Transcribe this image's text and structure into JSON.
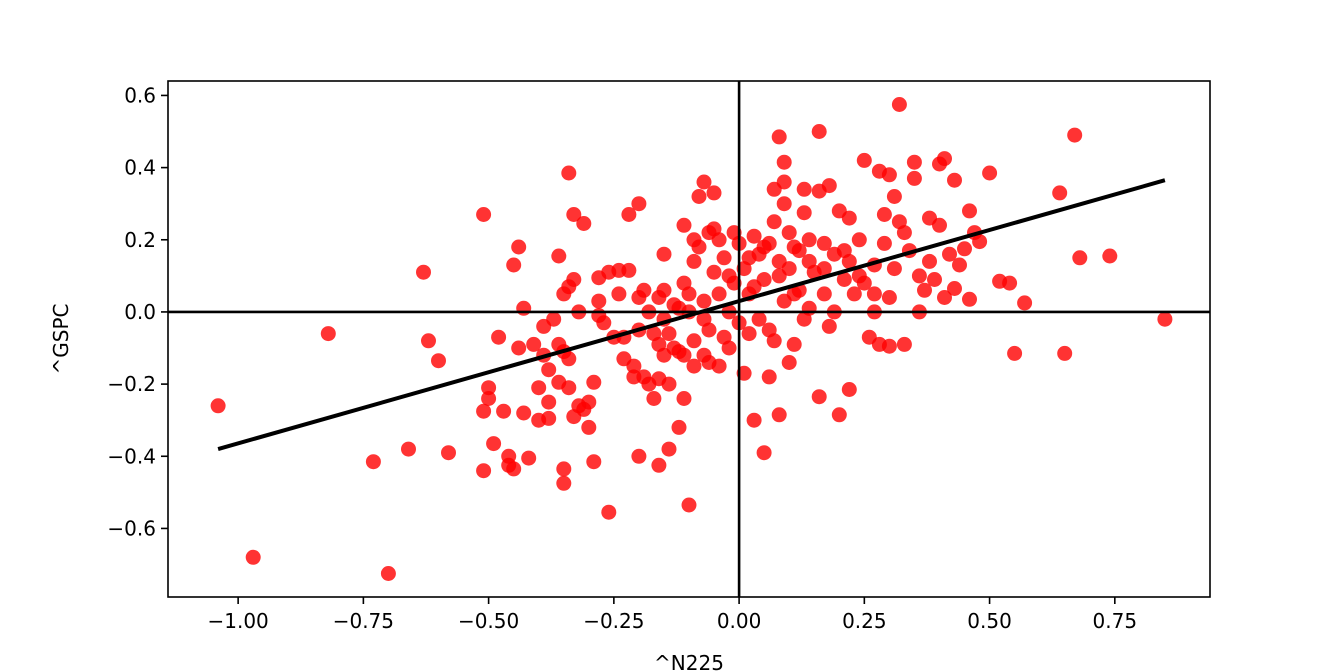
{
  "chart_data": {
    "type": "scatter",
    "xlabel": "^N225",
    "ylabel": "^GSPC",
    "xlim": [
      -1.14,
      0.94
    ],
    "ylim": [
      -0.79,
      0.64
    ],
    "x_ticks": [
      -1.0,
      -0.75,
      -0.5,
      -0.25,
      0.0,
      0.25,
      0.5,
      0.75
    ],
    "x_tick_labels": [
      "−1.00",
      "−0.75",
      "−0.50",
      "−0.25",
      "0.00",
      "0.25",
      "0.50",
      "0.75"
    ],
    "y_ticks": [
      -0.6,
      -0.4,
      -0.2,
      0.0,
      0.2,
      0.4,
      0.6
    ],
    "y_tick_labels": [
      "−0.6",
      "−0.4",
      "−0.2",
      "0.0",
      "0.2",
      "0.4",
      "0.6"
    ],
    "grid": false,
    "reference_lines": {
      "x": 0,
      "y": 0,
      "color": "#000000"
    },
    "marker_color": "#ff0000",
    "marker_alpha": 0.8,
    "regression_line": {
      "x": [
        -1.04,
        0.85
      ],
      "y": [
        -0.38,
        0.365
      ],
      "color": "#000000"
    },
    "points": [
      {
        "x": -1.04,
        "y": -0.26
      },
      {
        "x": -0.97,
        "y": -0.68
      },
      {
        "x": -0.82,
        "y": -0.06
      },
      {
        "x": -0.73,
        "y": -0.415
      },
      {
        "x": -0.7,
        "y": -0.725
      },
      {
        "x": -0.66,
        "y": -0.38
      },
      {
        "x": -0.63,
        "y": 0.11
      },
      {
        "x": -0.62,
        "y": -0.08
      },
      {
        "x": -0.6,
        "y": -0.135
      },
      {
        "x": -0.58,
        "y": -0.39
      },
      {
        "x": -0.51,
        "y": 0.27
      },
      {
        "x": -0.51,
        "y": -0.275
      },
      {
        "x": -0.51,
        "y": -0.44
      },
      {
        "x": -0.5,
        "y": -0.24
      },
      {
        "x": -0.5,
        "y": -0.21
      },
      {
        "x": -0.49,
        "y": -0.365
      },
      {
        "x": -0.48,
        "y": -0.07
      },
      {
        "x": -0.47,
        "y": -0.275
      },
      {
        "x": -0.46,
        "y": -0.4
      },
      {
        "x": -0.46,
        "y": -0.425
      },
      {
        "x": -0.45,
        "y": -0.435
      },
      {
        "x": -0.45,
        "y": 0.13
      },
      {
        "x": -0.44,
        "y": 0.18
      },
      {
        "x": -0.44,
        "y": -0.1
      },
      {
        "x": -0.43,
        "y": 0.01
      },
      {
        "x": -0.43,
        "y": -0.28
      },
      {
        "x": -0.42,
        "y": -0.405
      },
      {
        "x": -0.41,
        "y": -0.09
      },
      {
        "x": -0.4,
        "y": -0.3
      },
      {
        "x": -0.4,
        "y": -0.21
      },
      {
        "x": -0.39,
        "y": -0.04
      },
      {
        "x": -0.39,
        "y": -0.12
      },
      {
        "x": -0.38,
        "y": -0.16
      },
      {
        "x": -0.38,
        "y": -0.25
      },
      {
        "x": -0.38,
        "y": -0.295
      },
      {
        "x": -0.37,
        "y": -0.02
      },
      {
        "x": -0.36,
        "y": 0.155
      },
      {
        "x": -0.36,
        "y": -0.09
      },
      {
        "x": -0.36,
        "y": -0.195
      },
      {
        "x": -0.35,
        "y": -0.435
      },
      {
        "x": -0.35,
        "y": -0.475
      },
      {
        "x": -0.35,
        "y": 0.05
      },
      {
        "x": -0.35,
        "y": -0.11
      },
      {
        "x": -0.34,
        "y": 0.385
      },
      {
        "x": -0.34,
        "y": 0.07
      },
      {
        "x": -0.34,
        "y": -0.13
      },
      {
        "x": -0.34,
        "y": -0.21
      },
      {
        "x": -0.33,
        "y": 0.27
      },
      {
        "x": -0.33,
        "y": 0.09
      },
      {
        "x": -0.33,
        "y": -0.29
      },
      {
        "x": -0.32,
        "y": -0.26
      },
      {
        "x": -0.32,
        "y": 0.0
      },
      {
        "x": -0.31,
        "y": 0.245
      },
      {
        "x": -0.31,
        "y": -0.27
      },
      {
        "x": -0.3,
        "y": -0.32
      },
      {
        "x": -0.3,
        "y": -0.25
      },
      {
        "x": -0.29,
        "y": -0.195
      },
      {
        "x": -0.29,
        "y": -0.415
      },
      {
        "x": -0.28,
        "y": 0.095
      },
      {
        "x": -0.28,
        "y": 0.03
      },
      {
        "x": -0.28,
        "y": -0.01
      },
      {
        "x": -0.27,
        "y": -0.03
      },
      {
        "x": -0.26,
        "y": -0.555
      },
      {
        "x": -0.26,
        "y": 0.11
      },
      {
        "x": -0.25,
        "y": -0.07
      },
      {
        "x": -0.24,
        "y": 0.115
      },
      {
        "x": -0.24,
        "y": 0.05
      },
      {
        "x": -0.23,
        "y": -0.13
      },
      {
        "x": -0.23,
        "y": -0.07
      },
      {
        "x": -0.22,
        "y": 0.27
      },
      {
        "x": -0.22,
        "y": 0.115
      },
      {
        "x": -0.21,
        "y": -0.18
      },
      {
        "x": -0.21,
        "y": -0.15
      },
      {
        "x": -0.2,
        "y": 0.3
      },
      {
        "x": -0.2,
        "y": -0.4
      },
      {
        "x": -0.2,
        "y": 0.04
      },
      {
        "x": -0.19,
        "y": 0.06
      },
      {
        "x": -0.19,
        "y": -0.18
      },
      {
        "x": -0.18,
        "y": -0.2
      },
      {
        "x": -0.18,
        "y": 0.0
      },
      {
        "x": -0.17,
        "y": -0.06
      },
      {
        "x": -0.17,
        "y": -0.24
      },
      {
        "x": -0.16,
        "y": 0.04
      },
      {
        "x": -0.16,
        "y": -0.09
      },
      {
        "x": -0.16,
        "y": -0.425
      },
      {
        "x": -0.16,
        "y": -0.185
      },
      {
        "x": -0.15,
        "y": 0.06
      },
      {
        "x": -0.15,
        "y": 0.16
      },
      {
        "x": -0.15,
        "y": -0.12
      },
      {
        "x": -0.14,
        "y": -0.06
      },
      {
        "x": -0.14,
        "y": -0.38
      },
      {
        "x": -0.14,
        "y": -0.2
      },
      {
        "x": -0.13,
        "y": -0.1
      },
      {
        "x": -0.13,
        "y": 0.02
      },
      {
        "x": -0.12,
        "y": -0.11
      },
      {
        "x": -0.12,
        "y": -0.32
      },
      {
        "x": -0.11,
        "y": 0.24
      },
      {
        "x": -0.11,
        "y": -0.12
      },
      {
        "x": -0.11,
        "y": 0.08
      },
      {
        "x": -0.11,
        "y": -0.24
      },
      {
        "x": -0.1,
        "y": -0.535
      },
      {
        "x": -0.1,
        "y": 0.05
      },
      {
        "x": -0.1,
        "y": 0.0
      },
      {
        "x": -0.09,
        "y": -0.08
      },
      {
        "x": -0.09,
        "y": 0.2
      },
      {
        "x": -0.09,
        "y": 0.14
      },
      {
        "x": -0.09,
        "y": -0.15
      },
      {
        "x": -0.08,
        "y": 0.32
      },
      {
        "x": -0.08,
        "y": 0.18
      },
      {
        "x": -0.07,
        "y": 0.36
      },
      {
        "x": -0.07,
        "y": 0.03
      },
      {
        "x": -0.07,
        "y": -0.12
      },
      {
        "x": -0.06,
        "y": 0.22
      },
      {
        "x": -0.06,
        "y": -0.05
      },
      {
        "x": -0.06,
        "y": -0.14
      },
      {
        "x": -0.05,
        "y": 0.33
      },
      {
        "x": -0.05,
        "y": 0.11
      },
      {
        "x": -0.05,
        "y": 0.23
      },
      {
        "x": -0.04,
        "y": -0.15
      },
      {
        "x": -0.04,
        "y": 0.2
      },
      {
        "x": -0.04,
        "y": 0.05
      },
      {
        "x": -0.03,
        "y": -0.07
      },
      {
        "x": -0.03,
        "y": 0.15
      },
      {
        "x": -0.02,
        "y": 0.0
      },
      {
        "x": -0.02,
        "y": -0.1
      },
      {
        "x": -0.01,
        "y": 0.22
      },
      {
        "x": -0.01,
        "y": 0.08
      },
      {
        "x": 0.0,
        "y": -0.03
      },
      {
        "x": 0.0,
        "y": 0.19
      },
      {
        "x": 0.01,
        "y": -0.17
      },
      {
        "x": 0.01,
        "y": 0.12
      },
      {
        "x": 0.02,
        "y": -0.06
      },
      {
        "x": 0.02,
        "y": 0.05
      },
      {
        "x": 0.03,
        "y": 0.21
      },
      {
        "x": 0.03,
        "y": -0.3
      },
      {
        "x": 0.04,
        "y": 0.16
      },
      {
        "x": 0.04,
        "y": -0.02
      },
      {
        "x": 0.05,
        "y": -0.39
      },
      {
        "x": 0.05,
        "y": 0.09
      },
      {
        "x": 0.06,
        "y": -0.18
      },
      {
        "x": 0.06,
        "y": 0.19
      },
      {
        "x": 0.07,
        "y": 0.34
      },
      {
        "x": 0.07,
        "y": 0.25
      },
      {
        "x": 0.07,
        "y": -0.08
      },
      {
        "x": 0.08,
        "y": 0.485
      },
      {
        "x": 0.08,
        "y": -0.285
      },
      {
        "x": 0.08,
        "y": 0.14
      },
      {
        "x": 0.09,
        "y": 0.415
      },
      {
        "x": 0.09,
        "y": 0.36
      },
      {
        "x": 0.09,
        "y": 0.3
      },
      {
        "x": 0.1,
        "y": -0.14
      },
      {
        "x": 0.1,
        "y": 0.12
      },
      {
        "x": 0.1,
        "y": 0.22
      },
      {
        "x": 0.11,
        "y": -0.09
      },
      {
        "x": 0.11,
        "y": 0.05
      },
      {
        "x": 0.12,
        "y": 0.17
      },
      {
        "x": 0.13,
        "y": 0.275
      },
      {
        "x": 0.13,
        "y": 0.34
      },
      {
        "x": 0.14,
        "y": 0.01
      },
      {
        "x": 0.14,
        "y": 0.2
      },
      {
        "x": 0.15,
        "y": 0.11
      },
      {
        "x": 0.16,
        "y": 0.5
      },
      {
        "x": 0.16,
        "y": 0.335
      },
      {
        "x": 0.16,
        "y": -0.235
      },
      {
        "x": 0.17,
        "y": 0.05
      },
      {
        "x": 0.17,
        "y": 0.19
      },
      {
        "x": 0.18,
        "y": 0.35
      },
      {
        "x": 0.18,
        "y": -0.04
      },
      {
        "x": 0.19,
        "y": 0.16
      },
      {
        "x": 0.2,
        "y": 0.28
      },
      {
        "x": 0.2,
        "y": -0.285
      },
      {
        "x": 0.21,
        "y": 0.09
      },
      {
        "x": 0.21,
        "y": 0.17
      },
      {
        "x": 0.22,
        "y": 0.26
      },
      {
        "x": 0.22,
        "y": -0.215
      },
      {
        "x": 0.23,
        "y": 0.05
      },
      {
        "x": 0.24,
        "y": 0.2
      },
      {
        "x": 0.25,
        "y": 0.42
      },
      {
        "x": 0.25,
        "y": 0.08
      },
      {
        "x": 0.26,
        "y": -0.07
      },
      {
        "x": 0.27,
        "y": 0.13
      },
      {
        "x": 0.27,
        "y": 0.0
      },
      {
        "x": 0.28,
        "y": 0.39
      },
      {
        "x": 0.28,
        "y": -0.09
      },
      {
        "x": 0.29,
        "y": 0.27
      },
      {
        "x": 0.29,
        "y": 0.19
      },
      {
        "x": 0.3,
        "y": 0.38
      },
      {
        "x": 0.3,
        "y": 0.04
      },
      {
        "x": 0.3,
        "y": -0.095
      },
      {
        "x": 0.31,
        "y": 0.32
      },
      {
        "x": 0.31,
        "y": 0.12
      },
      {
        "x": 0.32,
        "y": 0.575
      },
      {
        "x": 0.32,
        "y": 0.25
      },
      {
        "x": 0.33,
        "y": 0.22
      },
      {
        "x": 0.33,
        "y": -0.09
      },
      {
        "x": 0.34,
        "y": 0.17
      },
      {
        "x": 0.35,
        "y": 0.415
      },
      {
        "x": 0.35,
        "y": 0.37
      },
      {
        "x": 0.36,
        "y": 0.1
      },
      {
        "x": 0.36,
        "y": 0.0
      },
      {
        "x": 0.37,
        "y": 0.06
      },
      {
        "x": 0.38,
        "y": 0.26
      },
      {
        "x": 0.38,
        "y": 0.14
      },
      {
        "x": 0.39,
        "y": 0.09
      },
      {
        "x": 0.4,
        "y": 0.41
      },
      {
        "x": 0.4,
        "y": 0.24
      },
      {
        "x": 0.41,
        "y": 0.425
      },
      {
        "x": 0.41,
        "y": 0.04
      },
      {
        "x": 0.42,
        "y": 0.16
      },
      {
        "x": 0.43,
        "y": 0.365
      },
      {
        "x": 0.43,
        "y": 0.065
      },
      {
        "x": 0.44,
        "y": 0.13
      },
      {
        "x": 0.45,
        "y": 0.175
      },
      {
        "x": 0.46,
        "y": 0.28
      },
      {
        "x": 0.46,
        "y": 0.035
      },
      {
        "x": 0.47,
        "y": 0.22
      },
      {
        "x": 0.48,
        "y": 0.195
      },
      {
        "x": 0.5,
        "y": 0.385
      },
      {
        "x": 0.52,
        "y": 0.085
      },
      {
        "x": 0.54,
        "y": 0.08
      },
      {
        "x": 0.55,
        "y": -0.115
      },
      {
        "x": 0.57,
        "y": 0.025
      },
      {
        "x": 0.64,
        "y": 0.33
      },
      {
        "x": 0.65,
        "y": -0.115
      },
      {
        "x": 0.67,
        "y": 0.49
      },
      {
        "x": 0.68,
        "y": 0.15
      },
      {
        "x": 0.74,
        "y": 0.155
      },
      {
        "x": 0.85,
        "y": -0.02
      },
      {
        "x": -0.02,
        "y": 0.1
      },
      {
        "x": 0.02,
        "y": 0.15
      },
      {
        "x": 0.05,
        "y": 0.18
      },
      {
        "x": 0.08,
        "y": 0.1
      },
      {
        "x": 0.12,
        "y": 0.06
      },
      {
        "x": 0.14,
        "y": 0.14
      },
      {
        "x": 0.19,
        "y": 0.0
      },
      {
        "x": 0.24,
        "y": 0.1
      },
      {
        "x": 0.27,
        "y": 0.05
      },
      {
        "x": 0.06,
        "y": -0.05
      },
      {
        "x": 0.09,
        "y": 0.03
      },
      {
        "x": 0.13,
        "y": -0.02
      },
      {
        "x": -0.07,
        "y": -0.02
      },
      {
        "x": -0.12,
        "y": 0.01
      },
      {
        "x": -0.15,
        "y": -0.02
      },
      {
        "x": -0.2,
        "y": -0.05
      },
      {
        "x": 0.03,
        "y": 0.07
      },
      {
        "x": 0.11,
        "y": 0.18
      },
      {
        "x": 0.17,
        "y": 0.12
      },
      {
        "x": 0.22,
        "y": 0.14
      }
    ]
  }
}
